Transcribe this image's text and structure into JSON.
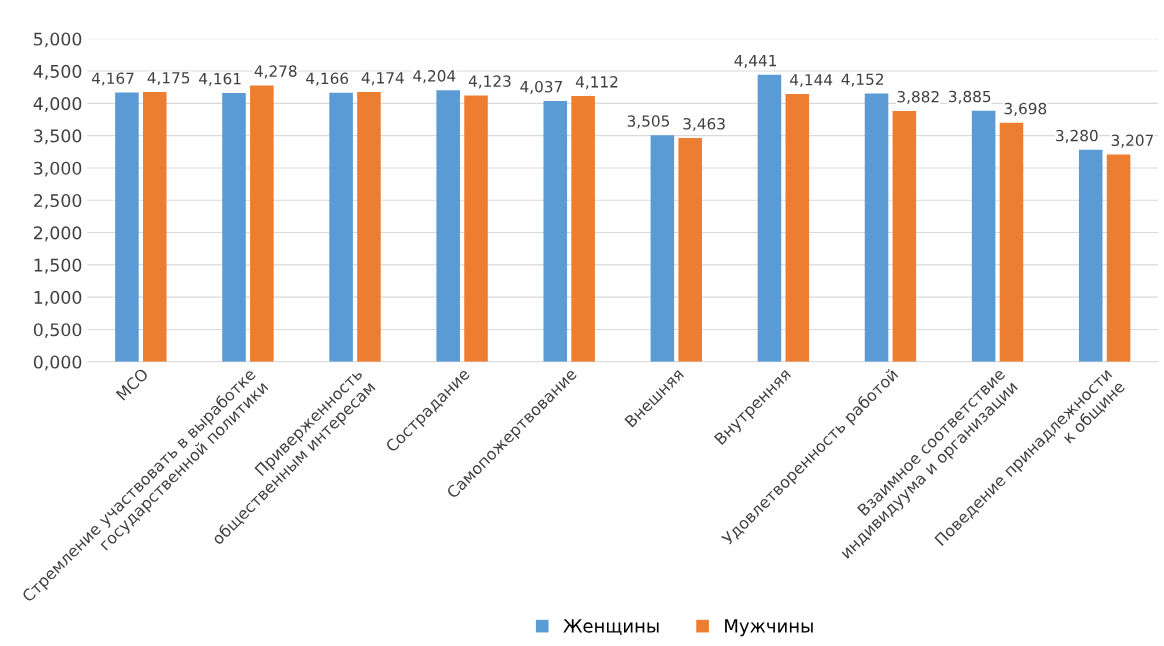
{
  "chart_data": {
    "type": "bar",
    "categories": [
      "МСО",
      "Стремление участвовать в выработке\nгосударственной политики",
      "Приверженность\nобщественным интересам",
      "Сострадание",
      "Самопожертвование",
      "Внешняя",
      "Внутренняя",
      "Удовлетворенность работой",
      "Взаимное соответствие\nиндивидуума и организации",
      "Поведение принадлежности\nк общине"
    ],
    "series": [
      {
        "name": "Женщины",
        "color": "#5b9bd5",
        "values": [
          4.167,
          4.161,
          4.166,
          4.204,
          4.037,
          3.505,
          4.441,
          4.152,
          3.885,
          3.28
        ],
        "value_labels": [
          "4,167",
          "4,161",
          "4,166",
          "4,204",
          "4,037",
          "3,505",
          "4,441",
          "4,152",
          "3,885",
          "3,280"
        ]
      },
      {
        "name": "Мужчины",
        "color": "#ed7d31",
        "values": [
          4.175,
          4.278,
          4.174,
          4.123,
          4.112,
          3.463,
          4.144,
          3.882,
          3.698,
          3.207
        ],
        "value_labels": [
          "4,175",
          "4,278",
          "4,174",
          "4,123",
          "4,112",
          "3,463",
          "4,144",
          "3,882",
          "3,698",
          "3,207"
        ]
      }
    ],
    "ylim": [
      0,
      5
    ],
    "yticks": [
      {
        "value": 0,
        "label": "0,000"
      },
      {
        "value": 0.5,
        "label": "0,500"
      },
      {
        "value": 1,
        "label": "1,000"
      },
      {
        "value": 1.5,
        "label": "1,500"
      },
      {
        "value": 2,
        "label": "2,000"
      },
      {
        "value": 2.5,
        "label": "2,500"
      },
      {
        "value": 3,
        "label": "3,000"
      },
      {
        "value": 3.5,
        "label": "3,500"
      },
      {
        "value": 4,
        "label": "4,000"
      },
      {
        "value": 4.5,
        "label": "4,500"
      },
      {
        "value": 5,
        "label": "5,000"
      }
    ],
    "grid": "y",
    "legend": "bottom"
  }
}
